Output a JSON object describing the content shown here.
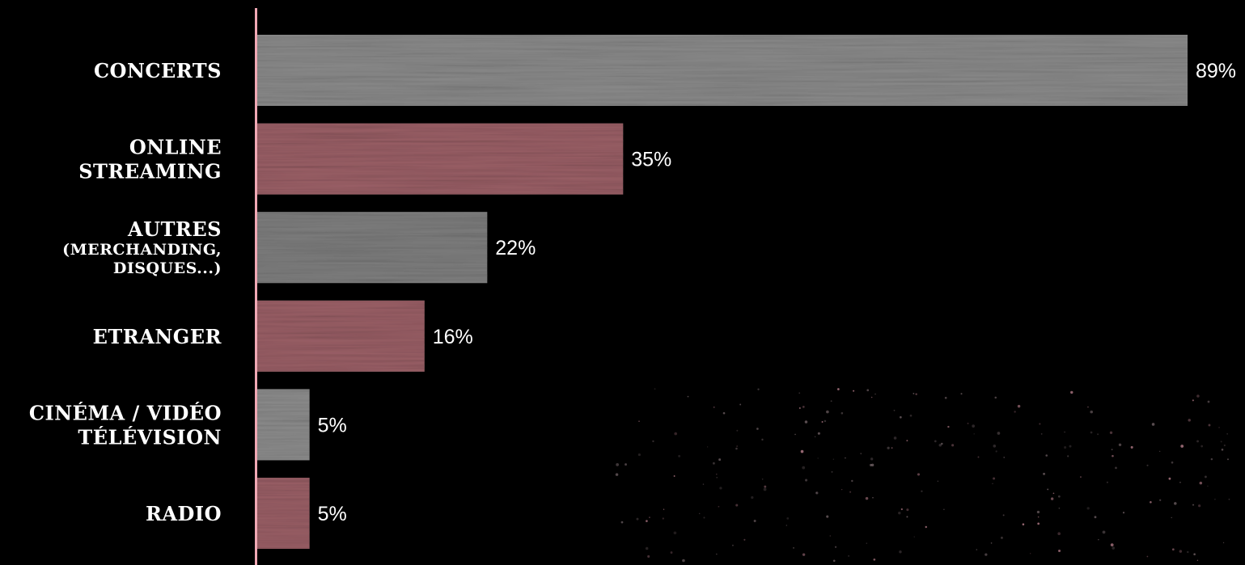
{
  "chart_data": {
    "type": "bar",
    "orientation": "horizontal",
    "categories": [
      [
        "CONCERTS"
      ],
      [
        "ONLINE",
        "STREAMING"
      ],
      [
        "AUTRES",
        "(MERCHANDING,",
        "DISQUES...)"
      ],
      [
        "ETRANGER"
      ],
      [
        "CINÉMA / VIDÉO",
        "TÉLÉVISION"
      ],
      [
        "RADIO"
      ]
    ],
    "values": [
      89,
      35,
      22,
      16,
      5,
      5
    ],
    "value_labels": [
      "89%",
      "35%",
      "22%",
      "16%",
      "5%",
      "5%"
    ],
    "bar_colors": [
      "#8a8a8a",
      "#9a5f66",
      "#7e7e7e",
      "#9a5f66",
      "#8c8c8c",
      "#9a5f66"
    ],
    "axis_color": "#f0a8b4",
    "background": "#000000",
    "xlim": [
      0,
      89
    ],
    "grid": false,
    "title": "",
    "xlabel": "",
    "ylabel": ""
  }
}
